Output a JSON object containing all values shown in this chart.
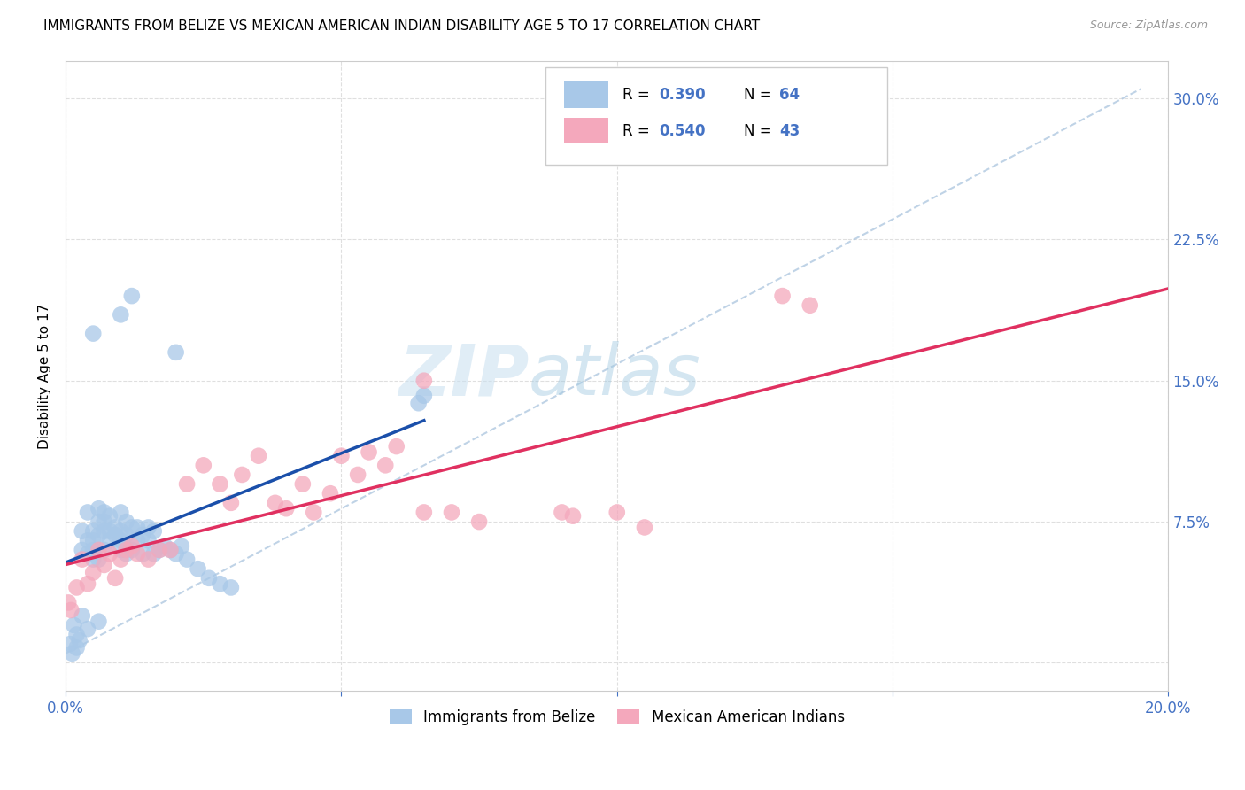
{
  "title": "IMMIGRANTS FROM BELIZE VS MEXICAN AMERICAN INDIAN DISABILITY AGE 5 TO 17 CORRELATION CHART",
  "source": "Source: ZipAtlas.com",
  "ylabel": "Disability Age 5 to 17",
  "xlim": [
    0.0,
    0.2
  ],
  "ylim": [
    -0.015,
    0.32
  ],
  "belize_R": 0.39,
  "belize_N": 64,
  "mexican_R": 0.54,
  "mexican_N": 43,
  "belize_color": "#a8c8e8",
  "mexican_color": "#f4a8bc",
  "belize_line_color": "#1a4faa",
  "mexican_line_color": "#e03060",
  "dash_line_color": "#b0c8e0",
  "watermark_color": "#d0e8f0",
  "background_color": "#ffffff",
  "grid_color": "#d8d8d8",
  "belize_x": [
    0.0008,
    0.0012,
    0.0015,
    0.002,
    0.0025,
    0.003,
    0.003,
    0.004,
    0.004,
    0.004,
    0.005,
    0.005,
    0.005,
    0.005,
    0.006,
    0.006,
    0.006,
    0.006,
    0.007,
    0.007,
    0.007,
    0.007,
    0.008,
    0.008,
    0.008,
    0.009,
    0.009,
    0.01,
    0.01,
    0.01,
    0.01,
    0.011,
    0.011,
    0.011,
    0.012,
    0.012,
    0.013,
    0.013,
    0.014,
    0.014,
    0.015,
    0.015,
    0.016,
    0.016,
    0.017,
    0.018,
    0.019,
    0.02,
    0.021,
    0.022,
    0.024,
    0.026,
    0.028,
    0.03,
    0.005,
    0.01,
    0.012,
    0.02,
    0.064,
    0.065,
    0.002,
    0.003,
    0.004,
    0.006
  ],
  "belize_y": [
    0.01,
    0.005,
    0.02,
    0.008,
    0.012,
    0.06,
    0.07,
    0.058,
    0.065,
    0.08,
    0.06,
    0.065,
    0.07,
    0.055,
    0.055,
    0.068,
    0.075,
    0.082,
    0.06,
    0.07,
    0.075,
    0.08,
    0.065,
    0.07,
    0.078,
    0.068,
    0.072,
    0.06,
    0.065,
    0.07,
    0.08,
    0.058,
    0.068,
    0.075,
    0.06,
    0.072,
    0.065,
    0.072,
    0.058,
    0.068,
    0.065,
    0.072,
    0.058,
    0.07,
    0.06,
    0.062,
    0.06,
    0.058,
    0.062,
    0.055,
    0.05,
    0.045,
    0.042,
    0.04,
    0.175,
    0.185,
    0.195,
    0.165,
    0.138,
    0.142,
    0.015,
    0.025,
    0.018,
    0.022
  ],
  "mexican_x": [
    0.0005,
    0.001,
    0.002,
    0.003,
    0.004,
    0.005,
    0.006,
    0.007,
    0.008,
    0.009,
    0.01,
    0.011,
    0.012,
    0.013,
    0.015,
    0.017,
    0.019,
    0.022,
    0.025,
    0.028,
    0.03,
    0.032,
    0.035,
    0.038,
    0.04,
    0.043,
    0.045,
    0.048,
    0.05,
    0.053,
    0.055,
    0.058,
    0.06,
    0.065,
    0.065,
    0.07,
    0.075,
    0.09,
    0.092,
    0.1,
    0.105,
    0.13,
    0.135
  ],
  "mexican_y": [
    0.032,
    0.028,
    0.04,
    0.055,
    0.042,
    0.048,
    0.06,
    0.052,
    0.058,
    0.045,
    0.055,
    0.06,
    0.062,
    0.058,
    0.055,
    0.06,
    0.06,
    0.095,
    0.105,
    0.095,
    0.085,
    0.1,
    0.11,
    0.085,
    0.082,
    0.095,
    0.08,
    0.09,
    0.11,
    0.1,
    0.112,
    0.105,
    0.115,
    0.15,
    0.08,
    0.08,
    0.075,
    0.08,
    0.078,
    0.08,
    0.072,
    0.195,
    0.19
  ],
  "title_fontsize": 11,
  "source_fontsize": 9,
  "tick_fontsize": 12,
  "ylabel_fontsize": 11
}
